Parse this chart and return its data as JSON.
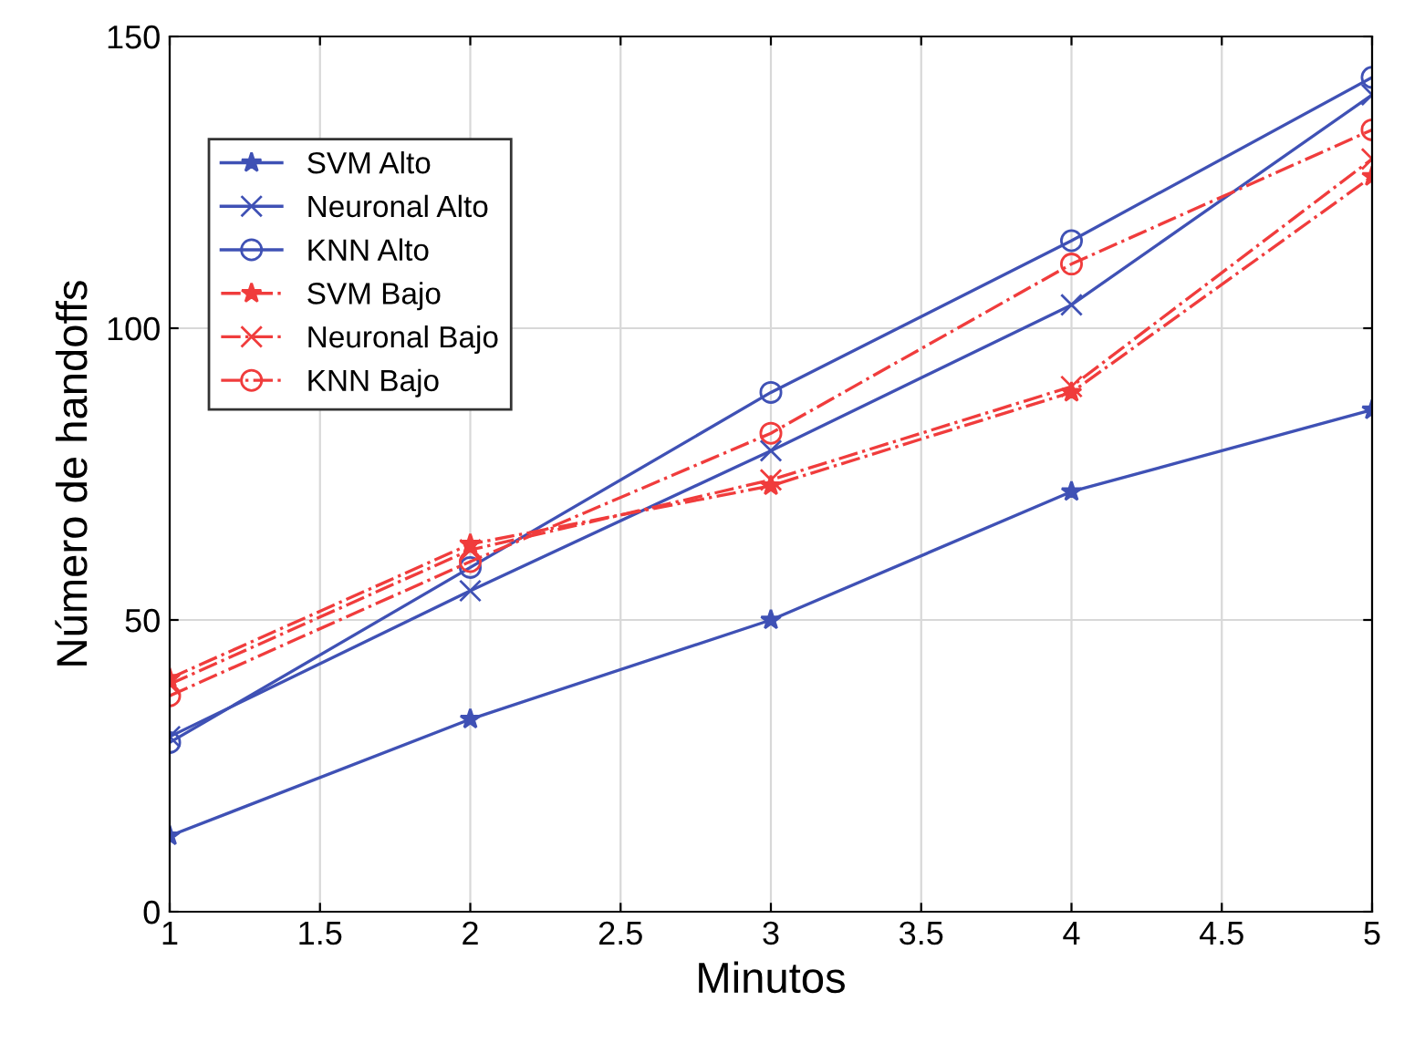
{
  "chart_data": {
    "type": "line",
    "xlabel": "Minutos",
    "ylabel": "Número de handoffs",
    "x": [
      1,
      2,
      3,
      4,
      5
    ],
    "xlim": [
      1,
      5
    ],
    "xticks": [
      1,
      1.5,
      2,
      2.5,
      3,
      3.5,
      4,
      4.5,
      5
    ],
    "ylim": [
      0,
      150
    ],
    "yticks": [
      0,
      50,
      100,
      150
    ],
    "grid": true,
    "legend": "top left",
    "series": [
      {
        "name": "SVM Alto",
        "color": "#3f51b5",
        "marker": "star",
        "line_style": "solid",
        "values": [
          13,
          33,
          50,
          72,
          86
        ]
      },
      {
        "name": "Neuronal Alto",
        "color": "#3f51b5",
        "marker": "cross",
        "line_style": "solid",
        "values": [
          30,
          55,
          79,
          104,
          140
        ]
      },
      {
        "name": "KNN Alto",
        "color": "#3f51b5",
        "marker": "circle",
        "line_style": "solid",
        "values": [
          29,
          59,
          89,
          115,
          143
        ]
      },
      {
        "name": "SVM Bajo",
        "color": "#f03c3c",
        "marker": "star",
        "line_style": "dashdot",
        "values": [
          40,
          63,
          73,
          89,
          126
        ]
      },
      {
        "name": "Neuronal Bajo",
        "color": "#f03c3c",
        "marker": "cross",
        "line_style": "dashdot",
        "values": [
          39,
          62,
          74,
          90,
          129
        ]
      },
      {
        "name": "KNN Bajo",
        "color": "#f03c3c",
        "marker": "circle",
        "line_style": "dashdot",
        "values": [
          37,
          60,
          82,
          111,
          134
        ]
      }
    ]
  }
}
